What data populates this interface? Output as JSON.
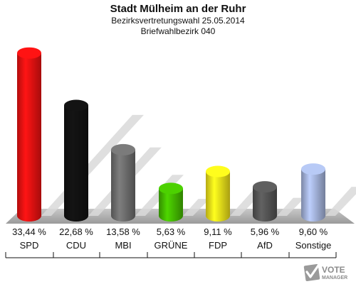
{
  "chart_data": {
    "type": "bar",
    "title": "Stadt Mülheim an der Ruhr",
    "subtitle": "Bezirksvertretungswahl 25.05.2014",
    "subtitle2": "Briefwahlbezirk 040",
    "categories": [
      "SPD",
      "CDU",
      "MBI",
      "GRÜNE",
      "FDP",
      "AfD",
      "Sonstige"
    ],
    "values": [
      33.44,
      22.68,
      13.58,
      5.63,
      9.11,
      5.96,
      9.6
    ],
    "value_labels": [
      "33,44 %",
      "22,68 %",
      "13,58 %",
      "5,63 %",
      "9,11 %",
      "5,96 %",
      "9,60 %"
    ],
    "colors": [
      "#ee1111",
      "#111111",
      "#6e6e6e",
      "#44bb00",
      "#f2e21a",
      "#555555",
      "#a4b4dc"
    ],
    "ylim": [
      0,
      35
    ],
    "grid": false,
    "legend": "none"
  },
  "logo": {
    "line1": "VOTE",
    "line2": "MANAGER"
  }
}
